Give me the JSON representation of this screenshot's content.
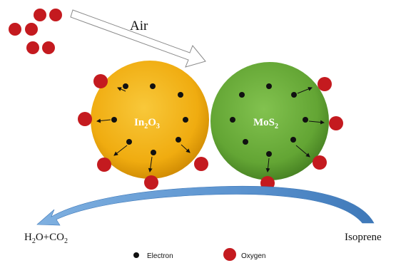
{
  "labels": {
    "air": "Air",
    "in2o3": {
      "main": "In",
      "sub1": "2",
      "mid": "O",
      "sub2": "3"
    },
    "mos2": {
      "main": "MoS",
      "sub": "2"
    },
    "products": {
      "h": "H",
      "s1": "2",
      "o": "O+CO",
      "s2": "2"
    },
    "isoprene": "Isoprene"
  },
  "legend": {
    "electron": "Electron",
    "oxygen": "Oxygen"
  },
  "colors": {
    "oxygen": "#c41a1f",
    "in2o3_light": "#f6c22a",
    "in2o3_dark": "#d58c00",
    "mos2_light": "#7cbf48",
    "mos2_dark": "#4a8a23",
    "arrow_blue": "#4a86c8",
    "electron": "#111111"
  }
}
